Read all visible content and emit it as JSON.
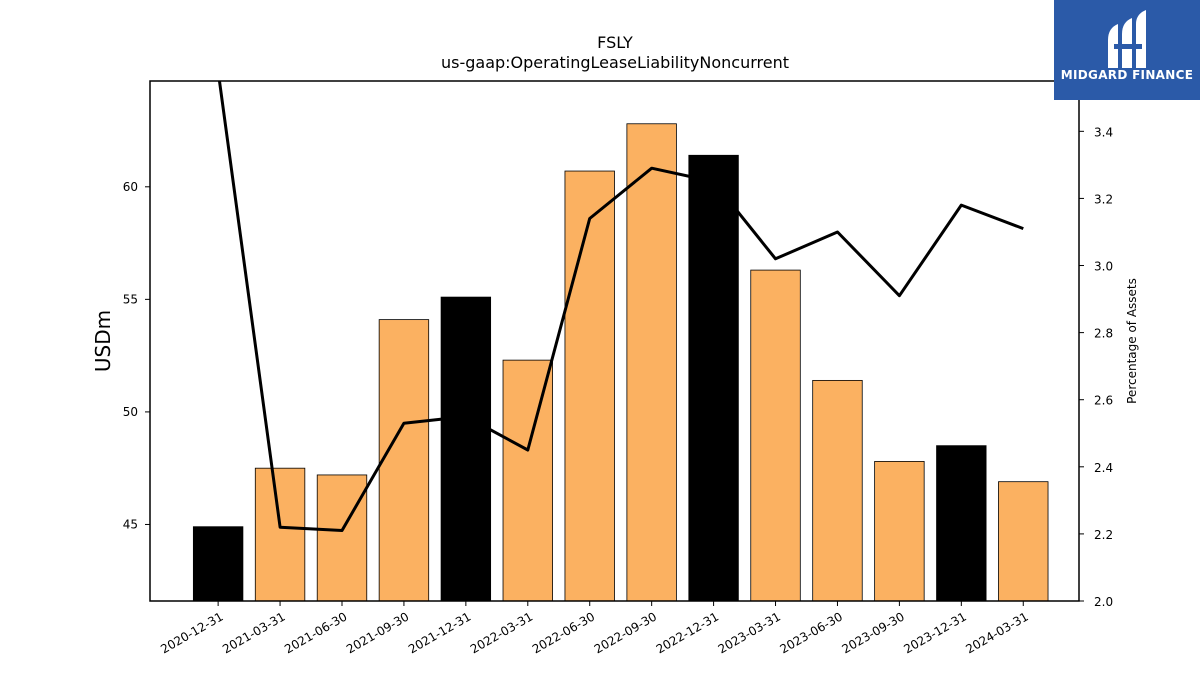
{
  "chart_data": {
    "type": "bar",
    "title": "FSLY",
    "subtitle": "us-gaap:OperatingLeaseLiabilityNoncurrent",
    "ylabel": "USDm",
    "y2label": "Percentage of Assets",
    "categories": [
      "2020-12-31",
      "2021-03-31",
      "2021-06-30",
      "2021-09-30",
      "2021-12-31",
      "2022-03-31",
      "2022-06-30",
      "2022-09-30",
      "2022-12-31",
      "2023-03-31",
      "2023-06-30",
      "2023-09-30",
      "2023-12-31",
      "2024-03-31"
    ],
    "series": [
      {
        "type": "bar",
        "values": [
          44.9,
          47.5,
          47.2,
          54.1,
          55.1,
          52.3,
          60.7,
          62.8,
          61.4,
          56.3,
          51.4,
          47.8,
          48.5,
          46.9
        ],
        "colors": [
          "#000000",
          "#fbb161",
          "#fbb161",
          "#fbb161",
          "#000000",
          "#fbb161",
          "#fbb161",
          "#fbb161",
          "#000000",
          "#fbb161",
          "#fbb161",
          "#fbb161",
          "#000000",
          "#fbb161"
        ]
      },
      {
        "type": "line",
        "axis": "right",
        "values": [
          3.58,
          2.22,
          2.21,
          2.53,
          2.55,
          2.45,
          3.14,
          3.29,
          3.25,
          3.02,
          3.1,
          2.91,
          3.18,
          3.11
        ],
        "color": "#000000"
      }
    ],
    "ylim": [
      41.6,
      64.7
    ],
    "y2lim": [
      2.0,
      3.55
    ],
    "yticks": [
      45,
      50,
      55,
      60
    ],
    "y2ticks": [
      2.0,
      2.2,
      2.4,
      2.6,
      2.8,
      3.0,
      3.2,
      3.4
    ]
  },
  "logo": {
    "text": "MIDGARD FINANCE",
    "color": "#2b5aa8"
  }
}
